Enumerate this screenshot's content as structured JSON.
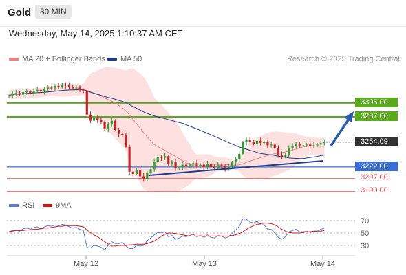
{
  "header": {
    "title": "Gold",
    "timeframe": "30 MIN"
  },
  "timestamp": "Wednesday, May 14, 2025 1:10:37 AM CET",
  "legend": {
    "ma20_label": "MA 20 + Bollinger Bands",
    "ma50_label": "MA 50",
    "credit": "Research © 2025 Trading Central"
  },
  "rsi_legend": {
    "rsi_label": "RSI",
    "ma_label": "9MA"
  },
  "colors": {
    "up": "#2e9e2e",
    "down": "#cc2222",
    "ma20": "#f08080",
    "ma50": "#1c3d8c",
    "bb_fill": "#fde0e0",
    "support": "#3a6fd8",
    "resistance": "#5aaa1e",
    "pivot": "#e05555",
    "rsi": "#5a7fd8",
    "rsi_ma": "#e01010",
    "last": "#333333"
  },
  "chart_data": {
    "type": "candlestick",
    "ylim": [
      3180,
      3345
    ],
    "x_labels": [
      "May 12",
      "May 13",
      "May 14"
    ],
    "levels": [
      {
        "value": 3305.0,
        "label": "3305.00",
        "kind": "resistance"
      },
      {
        "value": 3287.0,
        "label": "3287.00",
        "kind": "resistance"
      },
      {
        "value": 3254.09,
        "label": "3254.09",
        "kind": "last"
      },
      {
        "value": 3222.0,
        "label": "3222.00",
        "kind": "support"
      },
      {
        "value": 3207.0,
        "label": "3207.00",
        "kind": "pivot"
      },
      {
        "value": 3190.0,
        "label": "3190.00",
        "kind": "pivot"
      }
    ],
    "closes": [
      3315,
      3317,
      3318,
      3316,
      3319,
      3320,
      3318,
      3321,
      3322,
      3320,
      3323,
      3325,
      3324,
      3327,
      3326,
      3329,
      3328,
      3326,
      3324,
      3325,
      3322,
      3320,
      3290,
      3282,
      3286,
      3283,
      3280,
      3271,
      3277,
      3282,
      3270,
      3265,
      3264,
      3248,
      3216,
      3213,
      3218,
      3210,
      3206,
      3215,
      3219,
      3229,
      3235,
      3234,
      3236,
      3226,
      3228,
      3220,
      3222,
      3225,
      3223,
      3225,
      3227,
      3223,
      3225,
      3222,
      3226,
      3222,
      3221,
      3225,
      3223,
      3220,
      3222,
      3228,
      3232,
      3239,
      3254,
      3257,
      3255,
      3252,
      3256,
      3253,
      3254,
      3250,
      3251,
      3247,
      3238,
      3235,
      3238,
      3247,
      3249,
      3252,
      3250,
      3250,
      3251,
      3249,
      3250,
      3251,
      3253,
      3254
    ],
    "rsi": {
      "ticks": [
        70,
        50,
        30
      ],
      "ylim": [
        20,
        80
      ],
      "values": [
        52,
        54,
        55,
        53,
        57,
        58,
        56,
        59,
        60,
        57,
        60,
        62,
        61,
        63,
        62,
        64,
        63,
        60,
        58,
        59,
        56,
        54,
        27,
        26,
        30,
        29,
        27,
        23,
        30,
        36,
        33,
        33,
        35,
        29,
        25,
        25,
        30,
        29,
        30,
        38,
        42,
        47,
        51,
        50,
        52,
        44,
        46,
        40,
        42,
        45,
        44,
        46,
        48,
        44,
        46,
        43,
        47,
        43,
        42,
        46,
        45,
        42,
        44,
        50,
        55,
        61,
        73,
        72,
        68,
        66,
        69,
        63,
        63,
        56,
        56,
        50,
        43,
        40,
        44,
        52,
        54,
        56,
        52,
        52,
        53,
        51,
        52,
        53,
        56,
        58
      ],
      "ma9": [
        52,
        53,
        54,
        54,
        54,
        55,
        55,
        56,
        56,
        57,
        58,
        58,
        59,
        60,
        61,
        61,
        62,
        62,
        62,
        62,
        61,
        60,
        55,
        51,
        47,
        44,
        40,
        36,
        32,
        29,
        29,
        30,
        30,
        30,
        31,
        31,
        32,
        32,
        32,
        33,
        35,
        37,
        41,
        45,
        48,
        50,
        50,
        49,
        48,
        47,
        46,
        45,
        45,
        45,
        45,
        45,
        45,
        45,
        45,
        45,
        45,
        45,
        45,
        46,
        47,
        49,
        52,
        56,
        59,
        62,
        64,
        65,
        66,
        66,
        65,
        63,
        60,
        56,
        53,
        51,
        50,
        50,
        50,
        51,
        52,
        52,
        53,
        53,
        53,
        54
      ]
    }
  }
}
